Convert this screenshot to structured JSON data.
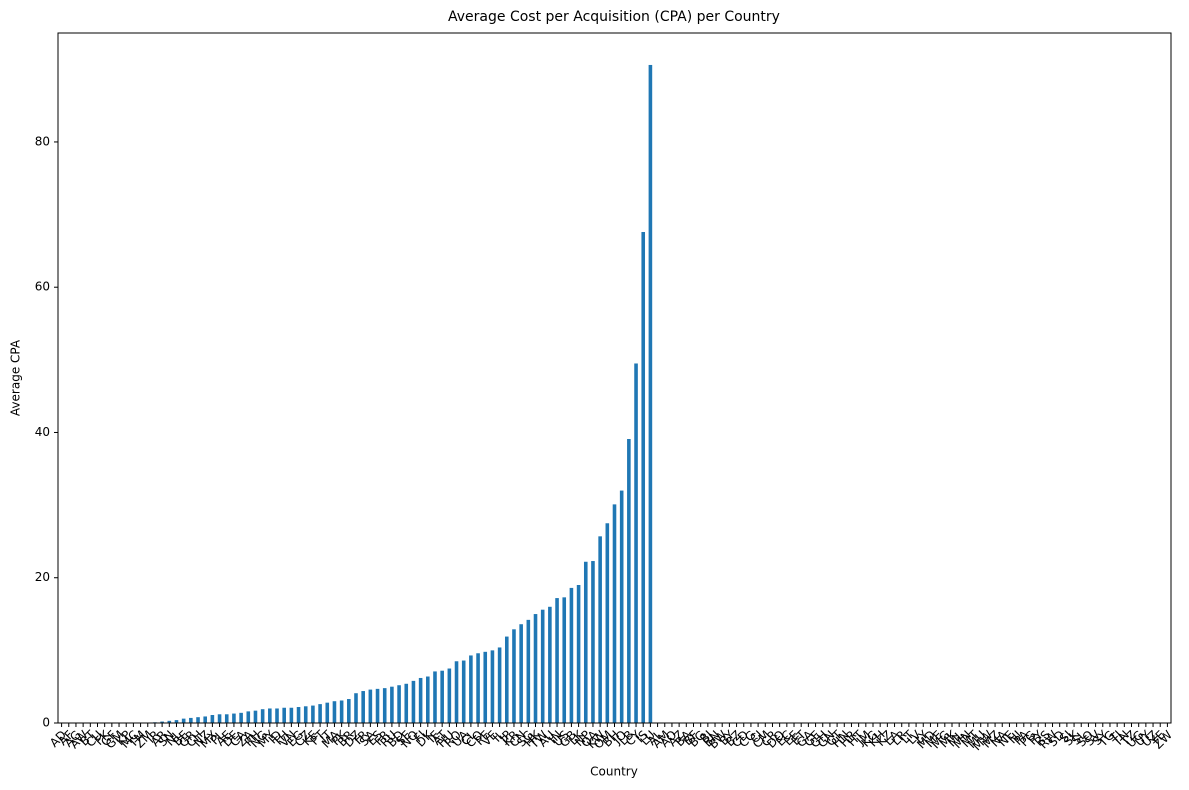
{
  "chart_data": {
    "type": "bar",
    "title": "Average Cost per Acquisition (CPA) per Country",
    "x_label": "Country",
    "y_label": "Average CPA",
    "color": "#1f77b4",
    "categories": [
      "AD",
      "AF",
      "AG",
      "AW",
      "BT",
      "CU",
      "FK",
      "GF",
      "GM",
      "KP",
      "MC",
      "TM",
      "ZM",
      "IR",
      "AR",
      "SN",
      "NL",
      "BE",
      "GR",
      "CH",
      "NZ",
      "MX",
      "PL",
      "AE",
      "DE",
      "CA",
      "ZA",
      "PH",
      "NG",
      "MY",
      "ID",
      "TH",
      "VN",
      "EG",
      "CZ",
      "KE",
      "PT",
      "IT",
      "MA",
      "PK",
      "BR",
      "DZ",
      "TR",
      "SA",
      "ES",
      "FR",
      "RU",
      "BD",
      "SE",
      "NO",
      "FI",
      "DK",
      "IE",
      "AT",
      "HU",
      "RO",
      "UA",
      "CL",
      "CO",
      "PE",
      "VE",
      "IL",
      "JP",
      "KR",
      "CN",
      "SG",
      "HK",
      "TW",
      "AU",
      "IN",
      "US",
      "GB",
      "LK",
      "NP",
      "QA",
      "KW",
      "OM",
      "BH",
      "JO",
      "LB",
      "CY",
      "IS",
      "LU",
      "AL",
      "AM",
      "AO",
      "AZ",
      "BA",
      "BF",
      "BG",
      "BJ",
      "BN",
      "BW",
      "BY",
      "BZ",
      "CD",
      "CG",
      "CI",
      "CM",
      "CR",
      "DO",
      "EC",
      "EE",
      "ET",
      "GA",
      "GE",
      "GH",
      "GN",
      "GT",
      "HN",
      "HR",
      "HT",
      "JM",
      "KG",
      "KH",
      "KZ",
      "LA",
      "LR",
      "LT",
      "LV",
      "LY",
      "MD",
      "ME",
      "MG",
      "MK",
      "ML",
      "MN",
      "MT",
      "MU",
      "MW",
      "MZ",
      "NA",
      "NE",
      "NI",
      "PA",
      "PG",
      "PY",
      "RS",
      "RW",
      "SD",
      "SI",
      "SK",
      "SL",
      "SO",
      "SV",
      "SY",
      "TG",
      "TJ",
      "TN",
      "TZ",
      "UG",
      "UY",
      "UZ",
      "YE",
      "ZW"
    ],
    "values": [
      0,
      0,
      0,
      0,
      0,
      0,
      0,
      0,
      0,
      0,
      0,
      0,
      0,
      0.1,
      0.2,
      0.3,
      0.4,
      0.6,
      0.7,
      0.8,
      0.9,
      1.1,
      1.2,
      1.2,
      1.3,
      1.4,
      1.6,
      1.7,
      1.9,
      2.0,
      2.0,
      2.1,
      2.1,
      2.2,
      2.3,
      2.4,
      2.6,
      2.8,
      3.0,
      3.1,
      3.3,
      4.1,
      4.4,
      4.6,
      4.7,
      4.8,
      5.0,
      5.2,
      5.4,
      5.8,
      6.2,
      6.4,
      7.1,
      7.2,
      7.5,
      8.5,
      8.6,
      9.3,
      9.6,
      9.8,
      10.0,
      10.4,
      11.9,
      12.9,
      13.6,
      14.2,
      15.0,
      15.6,
      16.0,
      17.2,
      17.3,
      18.6,
      19.0,
      22.2,
      22.3,
      25.7,
      27.5,
      30.1,
      32.0,
      39.1,
      49.5,
      67.6,
      90.6,
      0,
      0,
      0,
      0,
      0,
      0,
      0,
      0,
      0,
      0,
      0,
      0,
      0,
      0,
      0,
      0,
      0,
      0,
      0,
      0,
      0,
      0,
      0,
      0,
      0,
      0,
      0,
      0,
      0,
      0,
      0,
      0,
      0,
      0,
      0,
      0,
      0,
      0,
      0,
      0,
      0,
      0,
      0,
      0,
      0,
      0,
      0,
      0,
      0,
      0,
      0,
      0,
      0,
      0,
      0,
      0,
      0,
      0,
      0,
      0,
      0,
      0,
      0,
      0,
      0,
      0,
      0,
      0,
      0,
      0,
      0,
      0
    ],
    "ylim": [
      0,
      95
    ],
    "yticks": [
      0,
      20,
      40,
      60,
      80
    ]
  }
}
